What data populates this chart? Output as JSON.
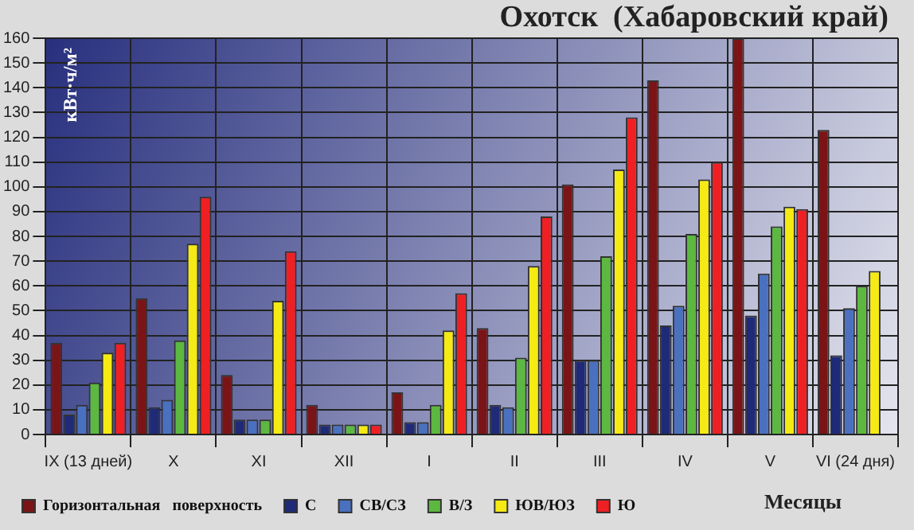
{
  "chart_data": {
    "type": "bar",
    "title": "Охотск  (Хабаровский край)",
    "ylabel": "кВт·ч/м²",
    "xlabel": "Месяцы",
    "categories": [
      "IX (13 дней)",
      "X",
      "XI",
      "XII",
      "I",
      "II",
      "III",
      "IV",
      "V",
      "VI (24 дня)"
    ],
    "series": [
      {
        "name": "Горизонтальная   поверхность",
        "color": "#7b1416",
        "values": [
          37,
          55,
          24,
          12,
          17,
          43,
          101,
          143,
          160,
          123
        ]
      },
      {
        "name": "С",
        "color": "#1f2a78",
        "values": [
          8,
          11,
          6,
          4,
          5,
          12,
          30,
          44,
          48,
          32
        ]
      },
      {
        "name": "СВ/СЗ",
        "color": "#4a70c0",
        "values": [
          12,
          14,
          6,
          4,
          5,
          11,
          30,
          52,
          65,
          51
        ]
      },
      {
        "name": "В/З",
        "color": "#5cb840",
        "values": [
          21,
          38,
          6,
          4,
          12,
          31,
          72,
          81,
          84,
          60
        ]
      },
      {
        "name": "ЮВ/ЮЗ",
        "color": "#f5ea14",
        "values": [
          33,
          77,
          54,
          4,
          42,
          68,
          107,
          103,
          92,
          66
        ]
      },
      {
        "name": "Ю",
        "color": "#ee2024",
        "values": [
          37,
          96,
          74,
          4,
          57,
          88,
          128,
          110,
          91,
          null
        ]
      }
    ],
    "ylim": [
      0,
      160
    ],
    "yticks": [
      0,
      10,
      20,
      30,
      40,
      50,
      60,
      70,
      80,
      90,
      100,
      110,
      120,
      130,
      140,
      150,
      160
    ],
    "grid": true,
    "legend": "bottom"
  }
}
